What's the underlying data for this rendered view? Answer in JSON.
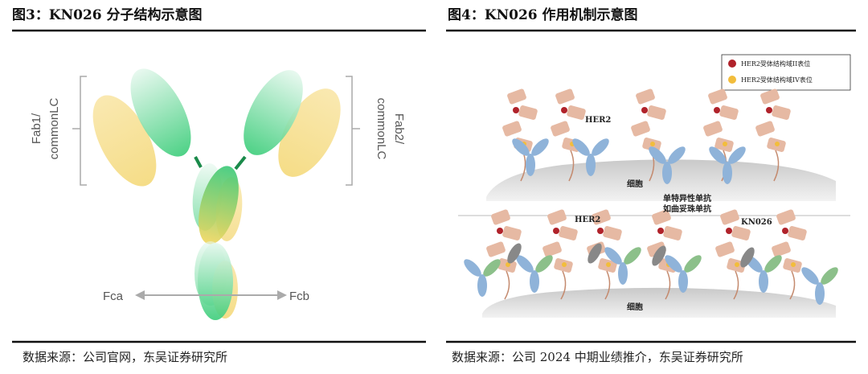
{
  "left_figure": {
    "title": "图3：KN026 分子结构示意图",
    "fab1_label": [
      "Fab1/",
      "commonLC"
    ],
    "fab2_label": [
      "Fab2/",
      "commonLC"
    ],
    "fca_label": "Fca",
    "fcb_label": "Fcb",
    "source": "数据来源：公司官网，东吴证券研究所"
  },
  "right_figure": {
    "title": "图4：KN026 作用机制示意图",
    "legend": [
      "HER2受体结构域II表位",
      "HER2受体结构域IV表位"
    ],
    "top_panel": {
      "her2_label": "HER2",
      "cell_label": "细胞",
      "antibody_label": [
        "单特异性单抗",
        "如曲妥珠单抗"
      ]
    },
    "bottom_panel": {
      "her2_label": "HER2",
      "kn026_label": "KN026",
      "cell_label": "细胞"
    },
    "source": "数据来源：公司 2024 中期业绩推介，东吴证券研究所"
  }
}
